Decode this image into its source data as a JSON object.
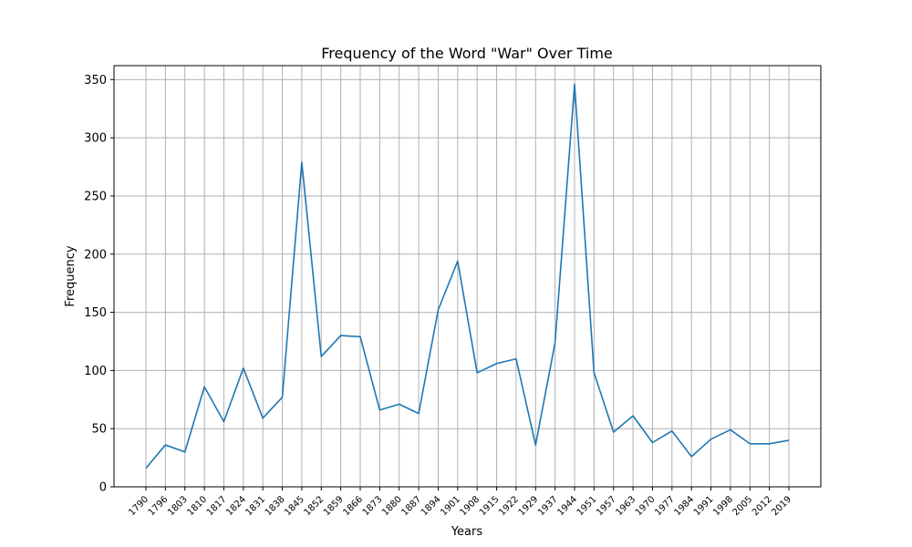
{
  "chart_data": {
    "type": "line",
    "title": "Frequency of the Word \"War\" Over Time",
    "xlabel": "Years",
    "ylabel": "Frequency",
    "ylim": [
      0,
      362
    ],
    "yticks": [
      0,
      50,
      100,
      150,
      200,
      250,
      300,
      350
    ],
    "grid": true,
    "x_tick_labels": [
      "1790",
      "1796",
      "1803",
      "1810",
      "1817",
      "1824",
      "1831",
      "1838",
      "1845",
      "1852",
      "1859",
      "1866",
      "1873",
      "1880",
      "1887",
      "1894",
      "1901",
      "1908",
      "1915",
      "1922",
      "1929",
      "1937",
      "1944",
      "1951",
      "1957",
      "1963",
      "1970",
      "1977",
      "1984",
      "1991",
      "1998",
      "2005",
      "2012",
      "2019"
    ],
    "series": [
      {
        "color": "#1f77b4",
        "values": [
          16,
          36,
          30,
          86,
          56,
          102,
          59,
          77,
          279,
          112,
          130,
          129,
          66,
          71,
          63,
          152,
          194,
          98,
          106,
          110,
          36,
          124,
          346,
          98,
          47,
          61,
          38,
          48,
          26,
          41,
          49,
          37,
          37,
          40
        ]
      }
    ]
  }
}
